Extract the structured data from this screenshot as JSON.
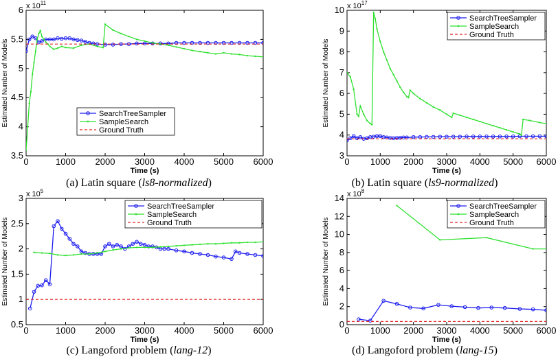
{
  "colors": {
    "search_tree_sampler": "#1c1cf0",
    "sample_search": "#2ee02e",
    "ground_truth": "#e02020"
  },
  "chart_data": [
    {
      "type": "line",
      "exponent_label": "x 10",
      "exponent": "11",
      "xlabel": "Time (s)",
      "ylabel": "Estimated Number of Models",
      "xlim": [
        0,
        6000
      ],
      "ylim": [
        3.5,
        6
      ],
      "xticks": [
        "0",
        "1000",
        "2000",
        "3000",
        "4000",
        "5000",
        "6000"
      ],
      "yticks": [
        "3.5",
        "4",
        "4.5",
        "5",
        "5.5",
        "6"
      ],
      "legend_position": "bottom-left",
      "caption": {
        "prefix": "(a) Latin square (",
        "italic": "ls8-normalized",
        "suffix": ")"
      },
      "series": [
        {
          "name": "SearchTreeSampler",
          "color_key": "search_tree_sampler",
          "markers": "circle",
          "x": [
            0,
            80,
            160,
            240,
            320,
            400,
            500,
            600,
            700,
            800,
            900,
            1000,
            1100,
            1200,
            1300,
            1400,
            1500,
            1600,
            1700,
            1800,
            2000,
            2200,
            2400,
            2600,
            2800,
            3000,
            3200,
            3400,
            3600,
            3800,
            4000,
            4200,
            4400,
            4600,
            4800,
            5000,
            5200,
            5400,
            5600,
            5800,
            6000
          ],
          "y": [
            5.3,
            5.5,
            5.55,
            5.52,
            5.45,
            5.47,
            5.5,
            5.5,
            5.5,
            5.52,
            5.51,
            5.52,
            5.52,
            5.5,
            5.49,
            5.48,
            5.46,
            5.44,
            5.43,
            5.42,
            5.41,
            5.41,
            5.42,
            5.42,
            5.43,
            5.43,
            5.43,
            5.43,
            5.43,
            5.44,
            5.44,
            5.44,
            5.44,
            5.44,
            5.44,
            5.44,
            5.44,
            5.44,
            5.44,
            5.44,
            5.44
          ]
        },
        {
          "name": "SampleSearch",
          "color_key": "sample_search",
          "markers": "dot",
          "x": [
            0,
            40,
            80,
            120,
            160,
            200,
            240,
            280,
            320,
            360,
            400,
            450,
            500,
            550,
            600,
            700,
            800,
            900,
            1000,
            1200,
            1400,
            1600,
            1800,
            1950,
            2000,
            2200,
            2400,
            2600,
            2800,
            3000,
            3200,
            3400,
            3600,
            3800,
            4000,
            4200,
            4400,
            4600,
            4800,
            5000,
            5200,
            5400,
            5600,
            5800,
            6000
          ],
          "y": [
            3.6,
            4.0,
            4.4,
            4.6,
            4.9,
            5.1,
            5.3,
            5.5,
            5.6,
            5.65,
            5.55,
            5.5,
            5.45,
            5.42,
            5.38,
            5.33,
            5.35,
            5.38,
            5.36,
            5.35,
            5.4,
            5.42,
            5.38,
            5.36,
            5.76,
            5.66,
            5.6,
            5.55,
            5.5,
            5.47,
            5.44,
            5.42,
            5.4,
            5.37,
            5.34,
            5.31,
            5.29,
            5.27,
            5.25,
            5.27,
            5.25,
            5.24,
            5.22,
            5.21,
            5.2
          ]
        },
        {
          "name": "Ground Truth",
          "color_key": "ground_truth",
          "dashed": true,
          "x": [
            0,
            6000
          ],
          "y": [
            5.42,
            5.42
          ]
        }
      ]
    },
    {
      "type": "line",
      "exponent_label": "x 10",
      "exponent": "17",
      "xlabel": "Time (s)",
      "ylabel": "Estimated Number of Models",
      "xlim": [
        0,
        6000
      ],
      "ylim": [
        3,
        10
      ],
      "xticks": [
        "0",
        "1000",
        "2000",
        "3000",
        "4000",
        "5000",
        "6000"
      ],
      "yticks": [
        "3",
        "4",
        "5",
        "6",
        "7",
        "8",
        "9",
        "10"
      ],
      "legend_position": "top-right",
      "caption": {
        "prefix": "(b) Latin square (",
        "italic": "ls9-normalized",
        "suffix": ")"
      },
      "series": [
        {
          "name": "SearchTreeSampler",
          "color_key": "search_tree_sampler",
          "markers": "circle",
          "x": [
            0,
            100,
            200,
            300,
            400,
            500,
            600,
            700,
            800,
            900,
            1000,
            1100,
            1200,
            1300,
            1400,
            1500,
            1600,
            1700,
            1800,
            2000,
            2200,
            2400,
            2600,
            2800,
            3000,
            3200,
            3400,
            3600,
            3800,
            4000,
            4200,
            4400,
            4600,
            4800,
            5000,
            5200,
            5400,
            5600,
            5800,
            6000
          ],
          "y": [
            3.75,
            3.85,
            3.95,
            3.85,
            3.9,
            3.82,
            3.85,
            3.9,
            3.92,
            3.95,
            3.95,
            3.9,
            3.88,
            3.86,
            3.85,
            3.86,
            3.87,
            3.88,
            3.88,
            3.9,
            3.9,
            3.91,
            3.91,
            3.92,
            3.92,
            3.92,
            3.92,
            3.93,
            3.93,
            3.93,
            3.93,
            3.93,
            3.93,
            3.93,
            3.93,
            3.94,
            3.94,
            3.94,
            3.94,
            3.94
          ]
        },
        {
          "name": "SampleSearch",
          "color_key": "sample_search",
          "markers": "dot",
          "x": [
            0,
            100,
            200,
            300,
            350,
            400,
            500,
            600,
            700,
            750,
            800,
            850,
            900,
            1000,
            1100,
            1200,
            1300,
            1400,
            1500,
            1600,
            1700,
            1800,
            1850,
            1900,
            2000,
            2200,
            2400,
            2600,
            2800,
            3000,
            3150,
            3200,
            3400,
            3600,
            3800,
            4000,
            4200,
            4400,
            4600,
            4800,
            5000,
            5200,
            5250,
            5300,
            5500,
            5800,
            6000
          ],
          "y": [
            7.0,
            6.8,
            6.2,
            5.0,
            4.9,
            5.4,
            5.0,
            4.7,
            4.55,
            4.5,
            9.9,
            9.6,
            9.1,
            8.5,
            8.0,
            7.6,
            7.2,
            6.9,
            6.6,
            6.3,
            6.05,
            5.85,
            5.8,
            6.15,
            6.0,
            5.75,
            5.55,
            5.35,
            5.2,
            5.0,
            4.85,
            5.05,
            4.95,
            4.85,
            4.75,
            4.65,
            4.55,
            4.45,
            4.35,
            4.25,
            4.15,
            4.05,
            4.0,
            4.75,
            4.7,
            4.6,
            4.55
          ]
        },
        {
          "name": "Ground Truth",
          "color_key": "ground_truth",
          "dashed": true,
          "x": [
            0,
            6000
          ],
          "y": [
            3.82,
            3.82
          ]
        }
      ]
    },
    {
      "type": "line",
      "exponent_label": "x 10",
      "exponent": "5",
      "xlabel": "Time (s)",
      "ylabel": "Estimated Number of Models",
      "xlim": [
        0,
        6000
      ],
      "ylim": [
        0.5,
        3
      ],
      "xticks": [
        "0",
        "1000",
        "2000",
        "3000",
        "4000",
        "5000",
        "6000"
      ],
      "yticks": [
        "0.5",
        "1",
        "1.5",
        "2",
        "2.5",
        "3"
      ],
      "legend_position": "top-right",
      "caption": {
        "prefix": "(c) Langoford problem (",
        "italic": "lang-12",
        "suffix": ")"
      },
      "series": [
        {
          "name": "SearchTreeSampler",
          "color_key": "search_tree_sampler",
          "markers": "circle",
          "x": [
            100,
            200,
            300,
            400,
            500,
            600,
            700,
            800,
            900,
            1000,
            1100,
            1200,
            1300,
            1400,
            1500,
            1600,
            1700,
            1800,
            1900,
            2000,
            2100,
            2200,
            2300,
            2400,
            2500,
            2600,
            2700,
            2800,
            2900,
            3000,
            3100,
            3200,
            3300,
            3400,
            3500,
            3600,
            3800,
            4000,
            4200,
            4400,
            4600,
            4800,
            5000,
            5200,
            5300,
            5400,
            5600,
            5800,
            6000
          ],
          "y": [
            0.82,
            1.15,
            1.27,
            1.28,
            1.38,
            1.3,
            2.45,
            2.55,
            2.4,
            2.3,
            2.2,
            2.1,
            2.05,
            1.95,
            1.92,
            1.9,
            1.9,
            1.9,
            1.9,
            2.05,
            2.1,
            2.05,
            2.08,
            2.05,
            2.0,
            2.05,
            2.1,
            2.14,
            2.1,
            2.08,
            2.05,
            2.05,
            2.03,
            2.0,
            2.0,
            2.0,
            1.97,
            1.95,
            1.92,
            1.9,
            1.88,
            1.85,
            1.83,
            1.8,
            1.95,
            1.92,
            1.9,
            1.88,
            1.86
          ]
        },
        {
          "name": "SampleSearch",
          "color_key": "sample_search",
          "markers": "dot",
          "x": [
            200,
            400,
            600,
            800,
            1000,
            1200,
            1400,
            1600,
            1800,
            2000,
            2200,
            2400,
            2600,
            2800,
            3000,
            3200,
            3400,
            3600,
            3800,
            4000,
            4200,
            4400,
            4600,
            4800,
            5000,
            5200,
            5400,
            5600,
            5800,
            6000
          ],
          "y": [
            1.93,
            1.92,
            1.91,
            1.88,
            1.87,
            1.88,
            1.9,
            1.9,
            1.92,
            1.95,
            1.98,
            2.0,
            2.02,
            2.03,
            2.03,
            2.03,
            2.04,
            2.05,
            2.06,
            2.07,
            2.08,
            2.09,
            2.1,
            2.1,
            2.11,
            2.12,
            2.12,
            2.13,
            2.13,
            2.14
          ]
        },
        {
          "name": "Ground Truth",
          "color_key": "ground_truth",
          "dashed": true,
          "x": [
            0,
            6000
          ],
          "y": [
            1.0,
            1.0
          ]
        }
      ]
    },
    {
      "type": "line",
      "exponent_label": "x 10",
      "exponent": "8",
      "xlabel": "Time (s)",
      "ylabel": "Estimated Number of Models",
      "xlim": [
        0,
        6000
      ],
      "ylim": [
        0,
        14
      ],
      "xticks": [
        "0",
        "1000",
        "2000",
        "3000",
        "4000",
        "5000",
        "6000"
      ],
      "yticks": [
        "0",
        "2",
        "4",
        "6",
        "8",
        "10",
        "12",
        "14"
      ],
      "legend_position": "top-right",
      "caption": {
        "prefix": "(d) Langoford problem (",
        "italic": "lang-15",
        "suffix": ")"
      },
      "series": [
        {
          "name": "SearchTreeSampler",
          "color_key": "search_tree_sampler",
          "markers": "circle",
          "x": [
            350,
            700,
            1100,
            1500,
            1900,
            2300,
            2750,
            3150,
            3550,
            3950,
            4350,
            4750,
            5200,
            5600,
            6000
          ],
          "y": [
            0.6,
            0.45,
            2.65,
            2.3,
            1.9,
            1.8,
            2.2,
            2.05,
            1.95,
            1.85,
            1.9,
            1.85,
            1.75,
            1.7,
            1.6
          ]
        },
        {
          "name": "SampleSearch",
          "color_key": "sample_search",
          "markers": "dot",
          "x": [
            1500,
            2800,
            4200,
            5600,
            6000
          ],
          "y": [
            13.2,
            9.4,
            9.65,
            8.4,
            8.4
          ]
        },
        {
          "name": "Ground Truth",
          "color_key": "ground_truth",
          "dashed": true,
          "x": [
            0,
            6000
          ],
          "y": [
            0.35,
            0.35
          ]
        }
      ]
    }
  ]
}
